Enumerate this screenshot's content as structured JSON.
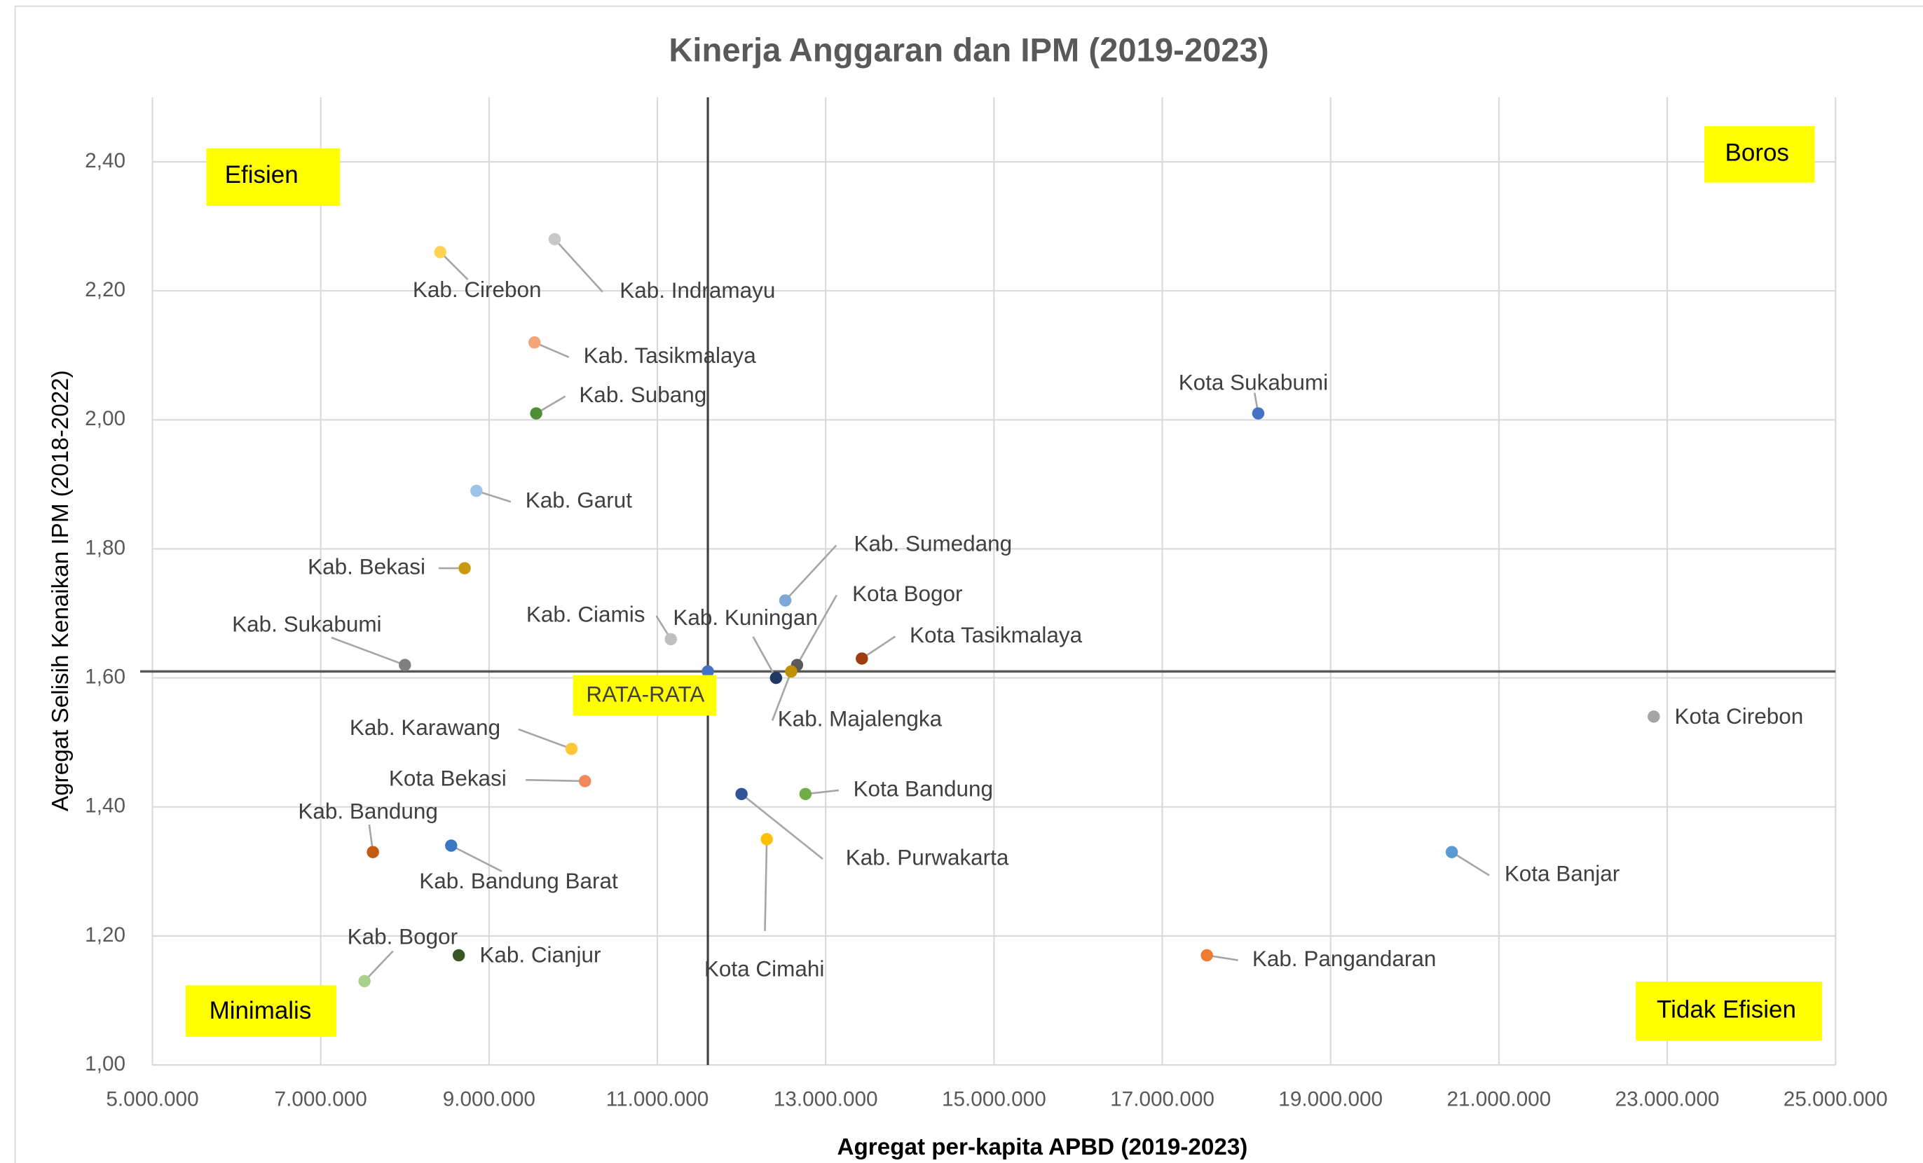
{
  "chart_data": {
    "type": "scatter",
    "title": "Kinerja Anggaran dan IPM (2019-2023)",
    "x_label": "Agregat per-kapita APBD (2019-2023)",
    "y_label": "Agregat Selisih Kenaikan IPM (2018-2022)",
    "xlim": [
      5000000,
      25000000
    ],
    "ylim": [
      1.0,
      2.5
    ],
    "xticks": [
      {
        "value": 5000000,
        "label": "5.000.000"
      },
      {
        "value": 7000000,
        "label": "7.000.000"
      },
      {
        "value": 9000000,
        "label": "9.000.000"
      },
      {
        "value": 11000000,
        "label": "11.000.000"
      },
      {
        "value": 13000000,
        "label": "13.000.000"
      },
      {
        "value": 15000000,
        "label": "15.000.000"
      },
      {
        "value": 17000000,
        "label": "17.000.000"
      },
      {
        "value": 19000000,
        "label": "19.000.000"
      },
      {
        "value": 21000000,
        "label": "21.000.000"
      },
      {
        "value": 23000000,
        "label": "23.000.000"
      },
      {
        "value": 25000000,
        "label": "25.000.000"
      }
    ],
    "yticks": [
      {
        "value": 1.0,
        "label": "1,00"
      },
      {
        "value": 1.2,
        "label": "1,20"
      },
      {
        "value": 1.4,
        "label": "1,40"
      },
      {
        "value": 1.6,
        "label": "1,60"
      },
      {
        "value": 1.8,
        "label": "1,80"
      },
      {
        "value": 2.0,
        "label": "2,00"
      },
      {
        "value": 2.2,
        "label": "2,20"
      },
      {
        "value": 2.4,
        "label": "2,40"
      }
    ],
    "grid": true,
    "average": {
      "label": "RATA-RATA",
      "x": 11600000,
      "y": 1.61,
      "color": "#4472c4"
    },
    "annotations": [
      "Efisien",
      "Boros",
      "Minimalis",
      "Tidak Efisien"
    ],
    "points": [
      {
        "name": "Kab. Cirebon",
        "x": 8420000,
        "y": 2.26,
        "color": "#ffd34f"
      },
      {
        "name": "Kab. Indramayu",
        "x": 9780000,
        "y": 2.28,
        "color": "#c8c8c8"
      },
      {
        "name": "Kab. Tasikmalaya",
        "x": 9540000,
        "y": 2.12,
        "color": "#f4a57a"
      },
      {
        "name": "Kab. Subang",
        "x": 9560000,
        "y": 2.01,
        "color": "#4f8f35"
      },
      {
        "name": "Kab. Garut",
        "x": 8850000,
        "y": 1.89,
        "color": "#9dc3e6"
      },
      {
        "name": "Kab. Bekasi",
        "x": 8710000,
        "y": 1.77,
        "color": "#c89a10"
      },
      {
        "name": "Kab. Sukabumi",
        "x": 8000000,
        "y": 1.62,
        "color": "#7f7f7f"
      },
      {
        "name": "Kab. Ciamis",
        "x": 11160000,
        "y": 1.66,
        "color": "#bfbfbf"
      },
      {
        "name": "Kab. Kuningan",
        "x": 12410000,
        "y": 1.6,
        "color": "#203864"
      },
      {
        "name": "Kab. Sumedang",
        "x": 12520000,
        "y": 1.72,
        "color": "#7fa8d6"
      },
      {
        "name": "Kota Bogor",
        "x": 12660000,
        "y": 1.62,
        "color": "#5a5a5a"
      },
      {
        "name": "Kota Tasikmalaya",
        "x": 13430000,
        "y": 1.63,
        "color": "#9e3d0f"
      },
      {
        "name": "Kab. Majalengka",
        "x": 12590000,
        "y": 1.61,
        "color": "#bf9000"
      },
      {
        "name": "Kota Cirebon",
        "x": 22840000,
        "y": 1.54,
        "color": "#a5a5a5"
      },
      {
        "name": "Kota Sukabumi",
        "x": 18140000,
        "y": 2.01,
        "color": "#4472c4"
      },
      {
        "name": "Kab. Karawang",
        "x": 9980000,
        "y": 1.49,
        "color": "#ffc736"
      },
      {
        "name": "Kota Bekasi",
        "x": 10140000,
        "y": 1.44,
        "color": "#f08a5a"
      },
      {
        "name": "Kota Bandung",
        "x": 12760000,
        "y": 1.42,
        "color": "#70ad47"
      },
      {
        "name": "Kab. Purwakarta",
        "x": 12000000,
        "y": 1.42,
        "color": "#2f5597"
      },
      {
        "name": "Kab. Bandung",
        "x": 7620000,
        "y": 1.33,
        "color": "#c55a11"
      },
      {
        "name": "Kab. Bandung Barat",
        "x": 8550000,
        "y": 1.34,
        "color": "#3a78c3"
      },
      {
        "name": "Kota Cimahi",
        "x": 12300000,
        "y": 1.35,
        "color": "#ffc000"
      },
      {
        "name": "Kota Banjar",
        "x": 20440000,
        "y": 1.33,
        "color": "#5b9bd5"
      },
      {
        "name": "Kab. Pangandaran",
        "x": 17530000,
        "y": 1.17,
        "color": "#ed7d31"
      },
      {
        "name": "Kab. Cianjur",
        "x": 8640000,
        "y": 1.17,
        "color": "#375623"
      },
      {
        "name": "Kab. Bogor",
        "x": 7520000,
        "y": 1.13,
        "color": "#a9d18e"
      }
    ]
  }
}
